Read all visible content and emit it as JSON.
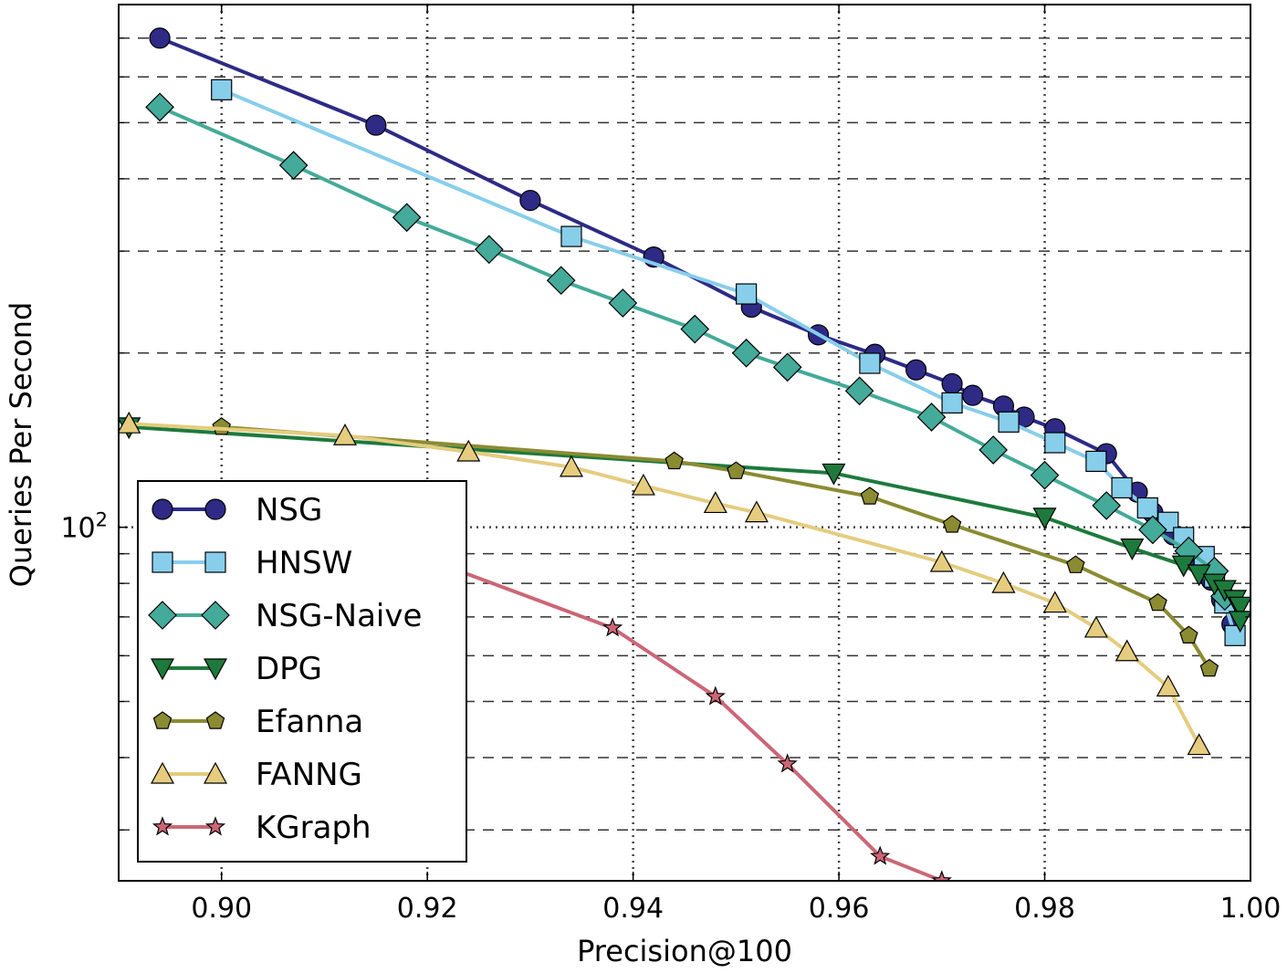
{
  "chart_data": {
    "type": "line",
    "title": "",
    "xlabel": "Precision@100",
    "ylabel": "Queries Per Second",
    "xlim": [
      0.89,
      1.0
    ],
    "y_scale": "log",
    "ylim": [
      24.5,
      800
    ],
    "x_ticks": [
      {
        "value": 0.9,
        "label": "0.90"
      },
      {
        "value": 0.92,
        "label": "0.92"
      },
      {
        "value": 0.94,
        "label": "0.94"
      },
      {
        "value": 0.96,
        "label": "0.96"
      },
      {
        "value": 0.98,
        "label": "0.98"
      },
      {
        "value": 1.0,
        "label": "1.00"
      }
    ],
    "y_major_ticks": [
      {
        "value": 100,
        "label_base": "10",
        "label_exp": "2"
      }
    ],
    "y_minor_ticks": [
      30,
      40,
      50,
      60,
      70,
      80,
      90,
      200,
      300,
      400,
      500,
      600,
      700
    ],
    "grid": true,
    "legend_position": "lower-left",
    "series": [
      {
        "name": "NSG",
        "color": "#2e2a86",
        "marker": "circle",
        "x": [
          0.894,
          0.915,
          0.93,
          0.942,
          0.9515,
          0.958,
          0.9635,
          0.9675,
          0.971,
          0.973,
          0.976,
          0.978,
          0.981,
          0.986,
          0.989,
          0.9905,
          0.9925,
          0.9942,
          0.9962,
          0.9972,
          0.9982
        ],
        "y": [
          700,
          495,
          367,
          293,
          240,
          215,
          199,
          187,
          177,
          169,
          162,
          155,
          148,
          134,
          115,
          106,
          97,
          89,
          81,
          75,
          68
        ]
      },
      {
        "name": "HNSW",
        "color": "#87ceeb",
        "marker": "square",
        "x": [
          0.9,
          0.934,
          0.951,
          0.963,
          0.971,
          0.9765,
          0.981,
          0.985,
          0.9875,
          0.99,
          0.992,
          0.9935,
          0.9955,
          0.9965,
          0.9975,
          0.9985
        ],
        "y": [
          570,
          318,
          253,
          192,
          164,
          152,
          140,
          130,
          117,
          108,
          102,
          96,
          89,
          82,
          74,
          65
        ]
      },
      {
        "name": "NSG-Naive",
        "color": "#44aa99",
        "marker": "diamond",
        "x": [
          0.894,
          0.907,
          0.918,
          0.926,
          0.933,
          0.939,
          0.946,
          0.951,
          0.955,
          0.962,
          0.969,
          0.975,
          0.98,
          0.986,
          0.9905,
          0.994,
          0.9965,
          0.9975
        ],
        "y": [
          532,
          422,
          343,
          302,
          267,
          244,
          220,
          200,
          189,
          172,
          155,
          136,
          123,
          109,
          99,
          91,
          84,
          76
        ]
      },
      {
        "name": "DPG",
        "color": "#1d7a3c",
        "marker": "triangle-down",
        "x": [
          0.891,
          0.9595,
          0.98,
          0.9885,
          0.9935,
          0.995,
          0.9965,
          0.9975,
          0.9985,
          0.999,
          0.999
        ],
        "y": [
          149,
          124,
          104,
          92,
          86,
          83,
          80,
          78,
          75,
          73,
          69
        ]
      },
      {
        "name": "Efanna",
        "color": "#8b8b32",
        "marker": "pentagon",
        "x": [
          0.9,
          0.944,
          0.95,
          0.963,
          0.971,
          0.983,
          0.991,
          0.994,
          0.996
        ],
        "y": [
          149,
          130,
          125,
          113,
          101,
          86,
          74,
          65,
          57
        ]
      },
      {
        "name": "FANNG",
        "color": "#e5cc7e",
        "marker": "triangle-up",
        "x": [
          0.891,
          0.912,
          0.924,
          0.934,
          0.941,
          0.948,
          0.952,
          0.97,
          0.976,
          0.981,
          0.985,
          0.988,
          0.992,
          0.995
        ],
        "y": [
          151,
          144,
          135,
          127,
          118,
          110,
          106,
          87,
          80,
          74,
          67,
          61,
          53,
          42
        ]
      },
      {
        "name": "KGraph",
        "color": "#cc6677",
        "marker": "star",
        "x": [
          0.906,
          0.938,
          0.948,
          0.955,
          0.964,
          0.97
        ],
        "y": [
          109,
          67,
          51,
          39,
          27,
          24.5
        ]
      }
    ]
  }
}
